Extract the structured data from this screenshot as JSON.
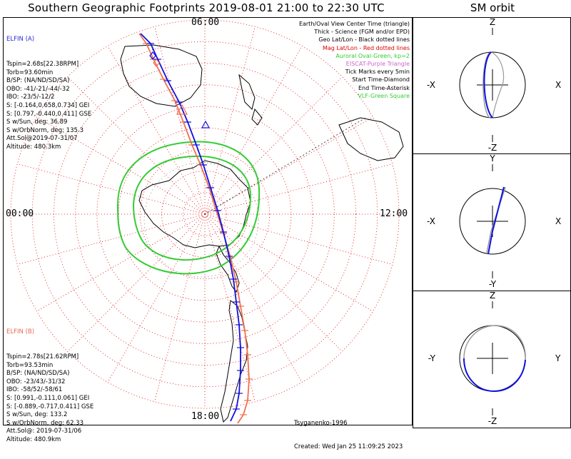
{
  "title": "Southern Geographic Footprints 2019-08-01 21:00 to 22:30 UTC",
  "sm_title": "SM orbit",
  "mlt_labels": {
    "top": "06:00",
    "left": "00:00",
    "right": "12:00",
    "bottom": "18:00"
  },
  "elfin_a": {
    "header": "ELFIN (A)",
    "lines": [
      "Tspin=2.68s[22.38RPM]",
      "Torb=93.60min",
      "B/SP: (NA/ND/SD/SA)",
      "OBO: -41/-21/-44/-32",
      "IBO: -23/5/-12/2",
      "S: [-0.164,0.658,0.734] GEI",
      "S: [0.797,-0.440,0.411] GSE",
      "S w/Sun, deg: 36.89",
      "S w/OrbNorm, deg: 135.3",
      "Att.Sol@2019-07-31/07",
      "Altitude: 480.3km"
    ]
  },
  "elfin_b": {
    "header": "ELFIN (B)",
    "lines": [
      "Tspin=2.78s[21.62RPM]",
      "Torb=93.53min",
      "B/SP: (NA/ND/SD/SA)",
      "OBO: -23/43/-31/32",
      "IBO: -58/52/-58/61",
      "S: [0.991,-0.111,0.061] GEI",
      "S: [-0.889,-0.717,0.411] GSE",
      "S w/Sun, deg: 133.2",
      "S w/OrbNorm, deg: 62.33",
      "Att.Sol@: 2019-07-31/06",
      "Altitude: 480.9km"
    ]
  },
  "legend": [
    {
      "text": "Earth/Oval View Center Time (triangle)",
      "color": "#000000"
    },
    {
      "text": "Thick - Science (FGM and/or EPD)",
      "color": "#000000"
    },
    {
      "text": "Geo Lat/Lon - Black dotted lines",
      "color": "#000000"
    },
    {
      "text": "Mag Lat/Lon - Red dotted lines",
      "color": "#e00000"
    },
    {
      "text": "Auroral Oval-Green, kp=2",
      "color": "#33cc33"
    },
    {
      "text": "EISCAT-Purple Triangle",
      "color": "#cc66cc"
    },
    {
      "text": "Tick Marks every 5min",
      "color": "#000000"
    },
    {
      "text": "Start Time-Diamond",
      "color": "#000000"
    },
    {
      "text": "End Time-Asterisk",
      "color": "#000000"
    },
    {
      "text": "VLF-Green Square",
      "color": "#33cc33"
    }
  ],
  "footer": {
    "model": "Tsyganenko-1996",
    "created": "Created: Wed Jan 25 11:09:25 2023"
  },
  "sm_panels": [
    {
      "top": "Z",
      "bottom": "-Z",
      "left": "-X",
      "right": "X"
    },
    {
      "top": "Y",
      "bottom": "-Y",
      "left": "-X",
      "right": "X"
    },
    {
      "top": "Z",
      "bottom": "-Z",
      "left": "-Y",
      "right": "Y"
    }
  ],
  "colors": {
    "elfin_a": "#1010e0",
    "elfin_b": "#f07050",
    "oval": "#33cc33",
    "mag_grid": "#e00000",
    "geo_grid": "#000000"
  },
  "chart_data": {
    "type": "polar-map",
    "projection": "southern-hemisphere-MLT",
    "mlt_ticks": [
      "00:00",
      "06:00",
      "12:00",
      "18:00"
    ],
    "series": [
      {
        "name": "ELFIN (A)",
        "footprint_tick_interval_min": 5
      },
      {
        "name": "ELFIN (B)",
        "footprint_tick_interval_min": 5
      }
    ]
  }
}
